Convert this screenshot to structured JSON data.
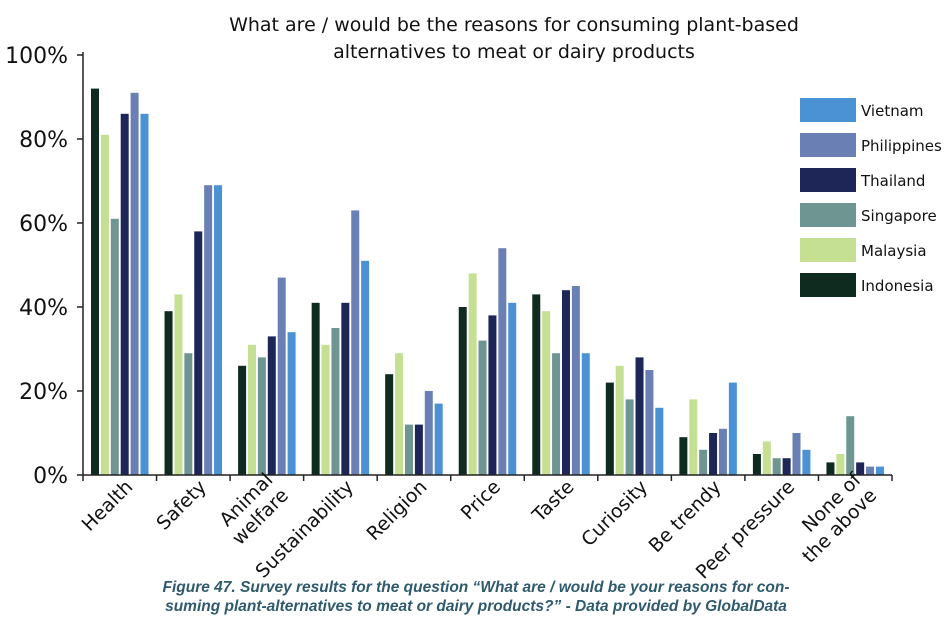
{
  "chart_data": {
    "type": "bar",
    "title": [
      "What are / would be the reasons for consuming plant-based",
      "alternatives to meat or dairy products"
    ],
    "xlabel": "",
    "ylabel": "",
    "ylim": [
      0,
      100
    ],
    "yticks": [
      "0%",
      "20%",
      "40%",
      "60%",
      "80%",
      "100%"
    ],
    "categories": [
      [
        "Health"
      ],
      [
        "Safety"
      ],
      [
        "Animal",
        "welfare"
      ],
      [
        "Sustainability"
      ],
      [
        "Religion"
      ],
      [
        "Price"
      ],
      [
        "Taste"
      ],
      [
        "Curiosity"
      ],
      [
        "Be trendy"
      ],
      [
        "Peer pressure"
      ],
      [
        "None of",
        "the above"
      ]
    ],
    "series": [
      {
        "name": "Indonesia",
        "color": "#0f2a1e",
        "values": [
          92,
          39,
          26,
          41,
          24,
          40,
          43,
          22,
          9,
          5,
          3
        ]
      },
      {
        "name": "Malaysia",
        "color": "#c5df93",
        "values": [
          81,
          43,
          31,
          31,
          29,
          48,
          39,
          26,
          18,
          8,
          5
        ]
      },
      {
        "name": "Singapore",
        "color": "#6f9593",
        "values": [
          61,
          29,
          28,
          35,
          12,
          32,
          29,
          18,
          6,
          4,
          14
        ]
      },
      {
        "name": "Thailand",
        "color": "#1e2657",
        "values": [
          86,
          58,
          33,
          41,
          12,
          38,
          44,
          28,
          10,
          4,
          3
        ]
      },
      {
        "name": "Philippines",
        "color": "#6a80b5",
        "values": [
          91,
          69,
          47,
          63,
          20,
          54,
          45,
          25,
          11,
          10,
          2
        ]
      },
      {
        "name": "Vietnam",
        "color": "#4a92d3",
        "values": [
          86,
          69,
          34,
          51,
          17,
          41,
          29,
          16,
          22,
          6,
          2
        ]
      }
    ],
    "legend_position": "right",
    "legend_order": [
      "Vietnam",
      "Philippines",
      "Thailand",
      "Singapore",
      "Malaysia",
      "Indonesia"
    ]
  },
  "caption": {
    "line1": "Figure 47. Survey results for the question “What are / would be your reasons for con-",
    "line2": "suming plant-alternatives to meat or dairy products?” - Data provided by GlobalData"
  }
}
